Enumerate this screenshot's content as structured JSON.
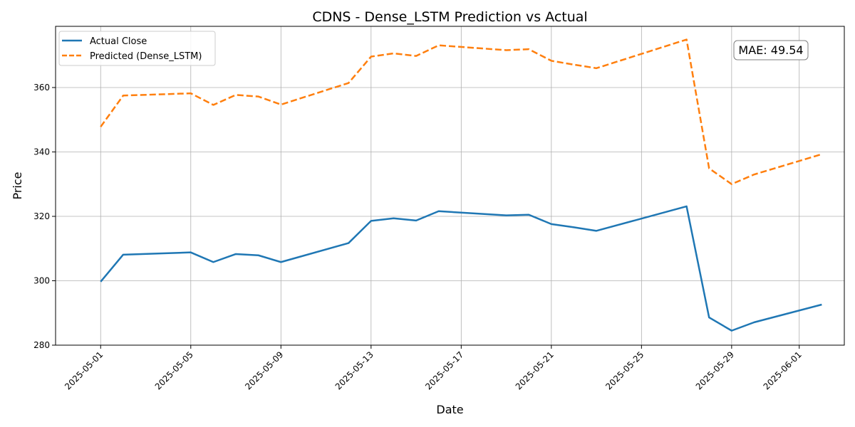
{
  "chart_data": {
    "type": "line",
    "title": "CDNS - Dense_LSTM Prediction vs Actual",
    "xlabel": "Date",
    "ylabel": "Price",
    "x_type": "date",
    "xlim": [
      "2025-04-29",
      "2025-06-03"
    ],
    "ylim": [
      280,
      379
    ],
    "x_ticks": [
      "2025-05-01",
      "2025-05-05",
      "2025-05-09",
      "2025-05-13",
      "2025-05-17",
      "2025-05-21",
      "2025-05-25",
      "2025-05-29",
      "2025-06-01"
    ],
    "y_ticks": [
      280,
      300,
      320,
      340,
      360
    ],
    "grid": true,
    "legend_position": "top-left",
    "x": [
      "2025-05-01",
      "2025-05-02",
      "2025-05-05",
      "2025-05-06",
      "2025-05-07",
      "2025-05-08",
      "2025-05-09",
      "2025-05-12",
      "2025-05-13",
      "2025-05-14",
      "2025-05-15",
      "2025-05-16",
      "2025-05-19",
      "2025-05-20",
      "2025-05-21",
      "2025-05-22",
      "2025-05-23",
      "2025-05-27",
      "2025-05-28",
      "2025-05-29",
      "2025-05-30",
      "2025-06-02"
    ],
    "series": [
      {
        "name": "Actual Close",
        "color": "#1f77b4",
        "style": "solid",
        "values": [
          299.7,
          308.1,
          308.8,
          305.8,
          308.3,
          307.9,
          305.8,
          311.7,
          318.6,
          319.4,
          318.7,
          321.6,
          320.3,
          320.5,
          317.6,
          316.6,
          315.5,
          323.1,
          288.6,
          284.5,
          287.1,
          292.6
        ]
      },
      {
        "name": "Predicted (Dense_LSTM)",
        "color": "#ff7f0e",
        "style": "dashed",
        "values": [
          347.8,
          357.5,
          358.2,
          354.6,
          357.7,
          357.2,
          354.7,
          361.4,
          369.6,
          370.6,
          369.8,
          373.1,
          371.6,
          371.9,
          368.3,
          367.1,
          366.0,
          374.9,
          334.9,
          330.0,
          333.0,
          339.3
        ]
      }
    ],
    "annotation": "MAE: 49.54"
  }
}
